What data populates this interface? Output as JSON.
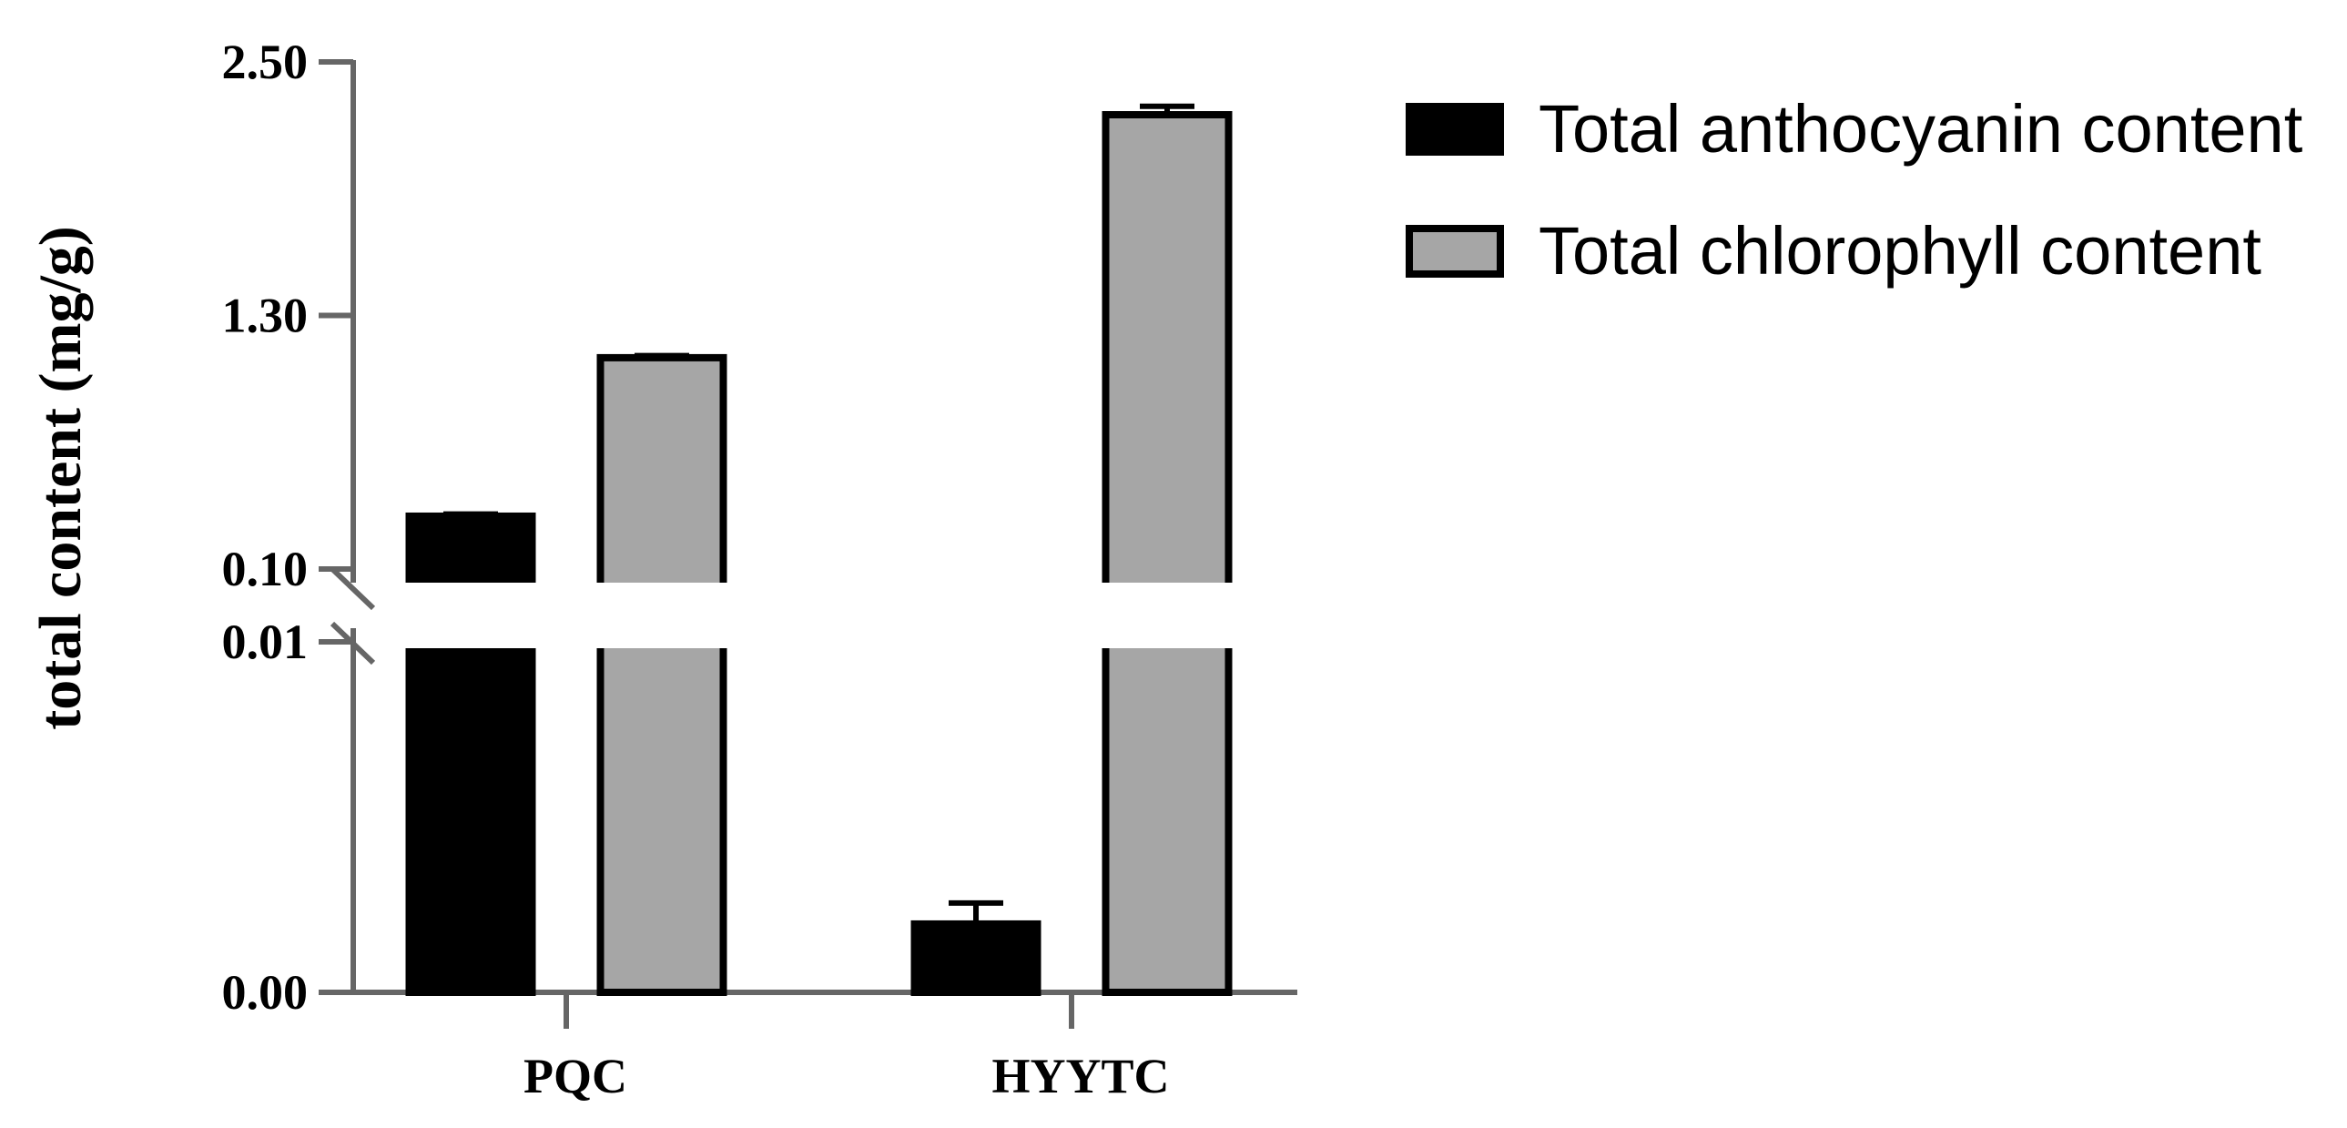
{
  "chart_data": {
    "type": "bar",
    "title": "",
    "xlabel": "",
    "ylabel": "total content (mg/g)",
    "categories": [
      "PQC",
      "HYYTC"
    ],
    "y_axis": {
      "broken": true,
      "lower_segment": {
        "range": [
          0.0,
          0.01
        ],
        "ticks": [
          "0.00",
          "0.01"
        ]
      },
      "upper_segment": {
        "range": [
          0.1,
          2.5
        ],
        "ticks": [
          "0.10",
          "1.30",
          "2.50"
        ]
      }
    },
    "series": [
      {
        "name": "Total anthocyanin content",
        "color": "#000000",
        "values": [
          0.35,
          0.00195
        ],
        "errors": [
          0.01,
          0.0006
        ]
      },
      {
        "name": "Total chlorophyll content",
        "color": "#a6a6a6",
        "values": [
          1.1,
          2.25
        ],
        "errors": [
          0.01,
          0.04
        ]
      }
    ],
    "legend_position": "top-right",
    "grid": false
  }
}
